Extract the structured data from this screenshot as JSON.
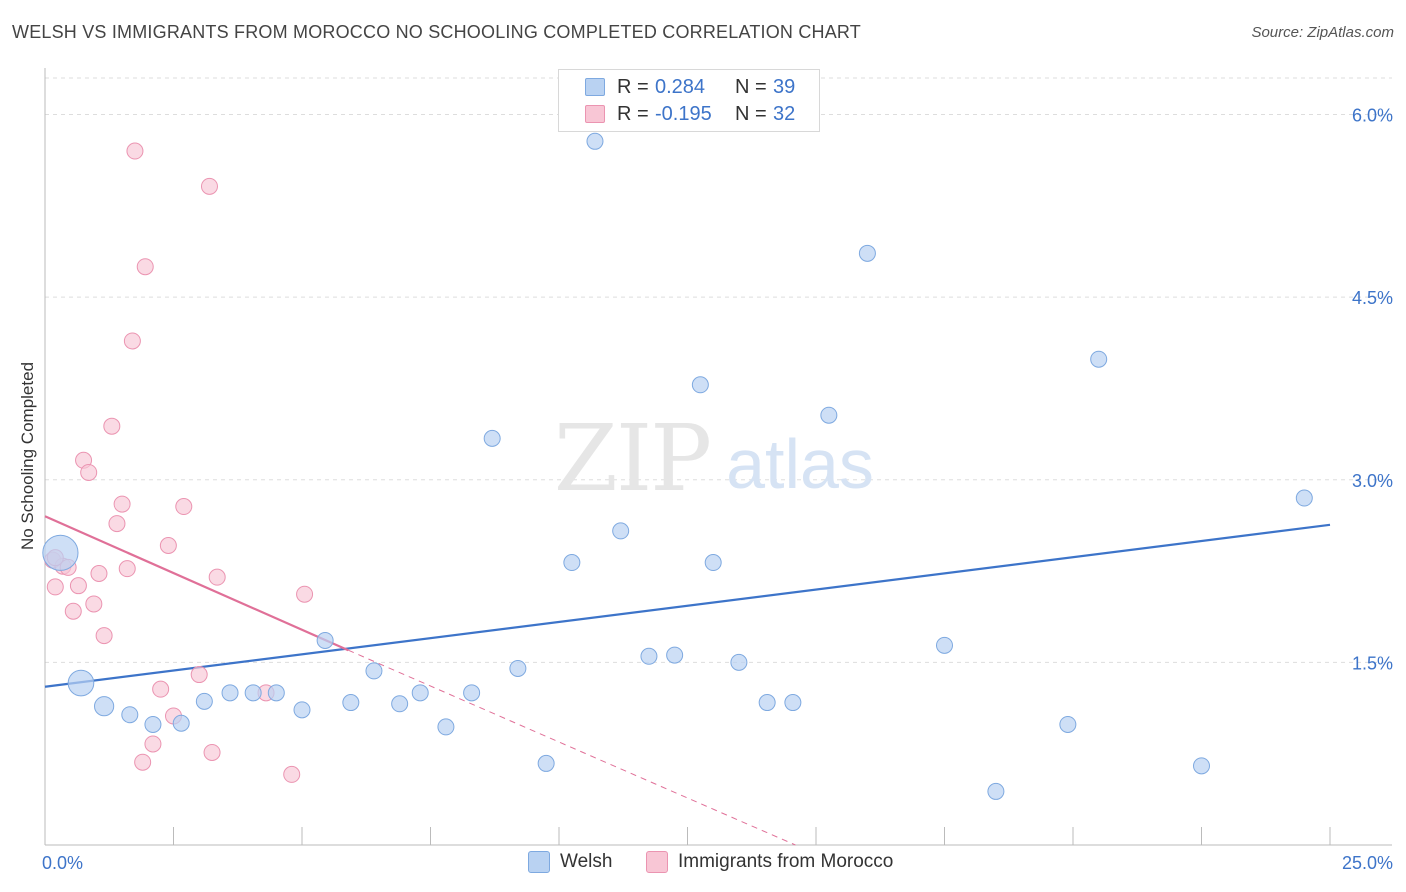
{
  "header": {
    "title": "WELSH VS IMMIGRANTS FROM MOROCCO NO SCHOOLING COMPLETED CORRELATION CHART",
    "source": "Source: ZipAtlas.com"
  },
  "watermark": {
    "zip": "ZIP",
    "atlas": "atlas"
  },
  "legend": {
    "rows": [
      {
        "r_label": "R =",
        "r_value": "0.284",
        "n_label": "N =",
        "n_value": "39"
      },
      {
        "r_label": "R =",
        "r_value": "-0.195",
        "n_label": "N =",
        "n_value": "32"
      }
    ],
    "series_names": [
      "Welsh",
      "Immigrants from Morocco"
    ]
  },
  "colors": {
    "welsh_fill": "#b9d2f2",
    "welsh_stroke": "#7ea9e0",
    "welsh_line": "#3d74c9",
    "morocco_fill": "#f8c6d5",
    "morocco_stroke": "#eb94b1",
    "morocco_line": "#e07098",
    "axis_text": "#3d74c9"
  },
  "chart_data": {
    "type": "scatter",
    "title": "WELSH VS IMMIGRANTS FROM MOROCCO NO SCHOOLING COMPLETED CORRELATION CHART",
    "xlabel": "",
    "ylabel": "No Schooling Completed",
    "xlim": [
      0,
      25
    ],
    "ylim": [
      0,
      6.3
    ],
    "x_tick_labels": [
      "0.0%",
      "25.0%"
    ],
    "y_ticks": [
      1.5,
      3.0,
      4.5,
      6.0
    ],
    "y_tick_labels": [
      "1.5%",
      "3.0%",
      "4.5%",
      "6.0%"
    ],
    "grid": "horizontal dashed",
    "series": [
      {
        "name": "Welsh",
        "points": [
          {
            "x": 0.3,
            "y": 2.4,
            "s": 2.2
          },
          {
            "x": 0.7,
            "y": 1.33,
            "s": 1.6
          },
          {
            "x": 1.15,
            "y": 1.14,
            "s": 1.2
          },
          {
            "x": 1.65,
            "y": 1.07,
            "s": 1.0
          },
          {
            "x": 2.1,
            "y": 0.99,
            "s": 1.0
          },
          {
            "x": 2.65,
            "y": 1.0,
            "s": 1.0
          },
          {
            "x": 3.1,
            "y": 1.18,
            "s": 1.0
          },
          {
            "x": 3.6,
            "y": 1.25,
            "s": 1.0
          },
          {
            "x": 4.05,
            "y": 1.25,
            "s": 1.0
          },
          {
            "x": 4.5,
            "y": 1.25,
            "s": 1.0
          },
          {
            "x": 5.0,
            "y": 1.11,
            "s": 1.0
          },
          {
            "x": 5.45,
            "y": 1.68,
            "s": 1.0
          },
          {
            "x": 5.95,
            "y": 1.17,
            "s": 1.0
          },
          {
            "x": 6.4,
            "y": 1.43,
            "s": 1.0
          },
          {
            "x": 6.9,
            "y": 1.16,
            "s": 1.0
          },
          {
            "x": 7.3,
            "y": 1.25,
            "s": 1.0
          },
          {
            "x": 7.8,
            "y": 0.97,
            "s": 1.0
          },
          {
            "x": 8.3,
            "y": 1.25,
            "s": 1.0
          },
          {
            "x": 8.7,
            "y": 3.34,
            "s": 1.0
          },
          {
            "x": 9.2,
            "y": 1.45,
            "s": 1.0
          },
          {
            "x": 9.75,
            "y": 0.67,
            "s": 1.0
          },
          {
            "x": 10.25,
            "y": 2.32,
            "s": 1.0
          },
          {
            "x": 10.7,
            "y": 5.78,
            "s": 1.0
          },
          {
            "x": 11.2,
            "y": 2.58,
            "s": 1.0
          },
          {
            "x": 11.75,
            "y": 1.55,
            "s": 1.0
          },
          {
            "x": 12.25,
            "y": 1.56,
            "s": 1.0
          },
          {
            "x": 12.75,
            "y": 3.78,
            "s": 1.0
          },
          {
            "x": 13.0,
            "y": 2.32,
            "s": 1.0
          },
          {
            "x": 13.5,
            "y": 1.5,
            "s": 1.0
          },
          {
            "x": 14.05,
            "y": 1.17,
            "s": 1.0
          },
          {
            "x": 14.55,
            "y": 1.17,
            "s": 1.0
          },
          {
            "x": 15.25,
            "y": 3.53,
            "s": 1.0
          },
          {
            "x": 16.0,
            "y": 4.86,
            "s": 1.0
          },
          {
            "x": 17.5,
            "y": 1.64,
            "s": 1.0
          },
          {
            "x": 18.5,
            "y": 0.44,
            "s": 1.0
          },
          {
            "x": 19.9,
            "y": 0.99,
            "s": 1.0
          },
          {
            "x": 20.5,
            "y": 3.99,
            "s": 1.0
          },
          {
            "x": 22.5,
            "y": 0.65,
            "s": 1.0
          },
          {
            "x": 24.5,
            "y": 2.85,
            "s": 1.0
          }
        ],
        "trend": {
          "x1": 0.0,
          "y1": 1.3,
          "x2": 25.0,
          "y2": 2.63
        }
      },
      {
        "name": "Immigrants from Morocco",
        "points": [
          {
            "x": 0.15,
            "y": 2.34,
            "s": 1.0
          },
          {
            "x": 0.2,
            "y": 2.12,
            "s": 1.0
          },
          {
            "x": 0.35,
            "y": 2.29,
            "s": 1.0
          },
          {
            "x": 0.45,
            "y": 2.28,
            "s": 1.0
          },
          {
            "x": 0.55,
            "y": 1.92,
            "s": 1.0
          },
          {
            "x": 0.65,
            "y": 2.13,
            "s": 1.0
          },
          {
            "x": 0.75,
            "y": 3.16,
            "s": 1.0
          },
          {
            "x": 0.85,
            "y": 3.06,
            "s": 1.0
          },
          {
            "x": 0.95,
            "y": 1.98,
            "s": 1.0
          },
          {
            "x": 1.05,
            "y": 2.23,
            "s": 1.0
          },
          {
            "x": 1.15,
            "y": 1.72,
            "s": 1.0
          },
          {
            "x": 1.3,
            "y": 3.44,
            "s": 1.0
          },
          {
            "x": 1.4,
            "y": 2.64,
            "s": 1.0
          },
          {
            "x": 1.5,
            "y": 2.8,
            "s": 1.0
          },
          {
            "x": 1.6,
            "y": 2.27,
            "s": 1.0
          },
          {
            "x": 1.7,
            "y": 4.14,
            "s": 1.0
          },
          {
            "x": 1.75,
            "y": 5.7,
            "s": 1.0
          },
          {
            "x": 1.9,
            "y": 0.68,
            "s": 1.0
          },
          {
            "x": 1.95,
            "y": 4.75,
            "s": 1.0
          },
          {
            "x": 2.1,
            "y": 0.83,
            "s": 1.0
          },
          {
            "x": 2.25,
            "y": 1.28,
            "s": 1.0
          },
          {
            "x": 2.4,
            "y": 2.46,
            "s": 1.0
          },
          {
            "x": 2.5,
            "y": 1.06,
            "s": 1.0
          },
          {
            "x": 2.7,
            "y": 2.78,
            "s": 1.0
          },
          {
            "x": 3.0,
            "y": 1.4,
            "s": 1.0
          },
          {
            "x": 3.2,
            "y": 5.41,
            "s": 1.0
          },
          {
            "x": 3.25,
            "y": 0.76,
            "s": 1.0
          },
          {
            "x": 3.35,
            "y": 2.2,
            "s": 1.0
          },
          {
            "x": 4.3,
            "y": 1.25,
            "s": 1.0
          },
          {
            "x": 4.8,
            "y": 0.58,
            "s": 1.0
          },
          {
            "x": 5.05,
            "y": 2.06,
            "s": 1.0
          },
          {
            "x": 0.2,
            "y": 2.36,
            "s": 1.0
          }
        ],
        "trend": {
          "x1": 0.0,
          "y1": 2.7,
          "x2": 5.9,
          "y2": 1.6
        },
        "trend_extension": {
          "x1": 5.9,
          "y1": 1.6,
          "x2": 14.6,
          "y2": 0.0
        }
      }
    ]
  }
}
